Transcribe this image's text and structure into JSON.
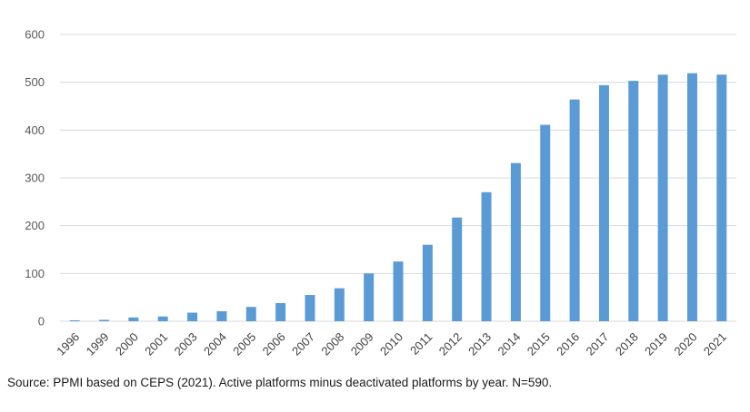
{
  "chart_data": {
    "type": "bar",
    "categories": [
      "1996",
      "1999",
      "2000",
      "2001",
      "2003",
      "2004",
      "2005",
      "2006",
      "2007",
      "2008",
      "2009",
      "2010",
      "2011",
      "2012",
      "2013",
      "2014",
      "2015",
      "2016",
      "2017",
      "2018",
      "2019",
      "2020",
      "2021"
    ],
    "values": [
      2,
      3,
      8,
      10,
      18,
      21,
      30,
      38,
      55,
      69,
      100,
      125,
      160,
      217,
      270,
      331,
      411,
      464,
      494,
      503,
      516,
      519,
      516
    ],
    "ylim": [
      0,
      600
    ],
    "yticks": [
      0,
      100,
      200,
      300,
      400,
      500,
      600
    ],
    "grid": true,
    "bar_color": "#5B9BD5",
    "grid_color": "#D9D9D9"
  },
  "caption": "Source: PPMI based on CEPS (2021). Active platforms minus deactivated platforms by year. N=590."
}
